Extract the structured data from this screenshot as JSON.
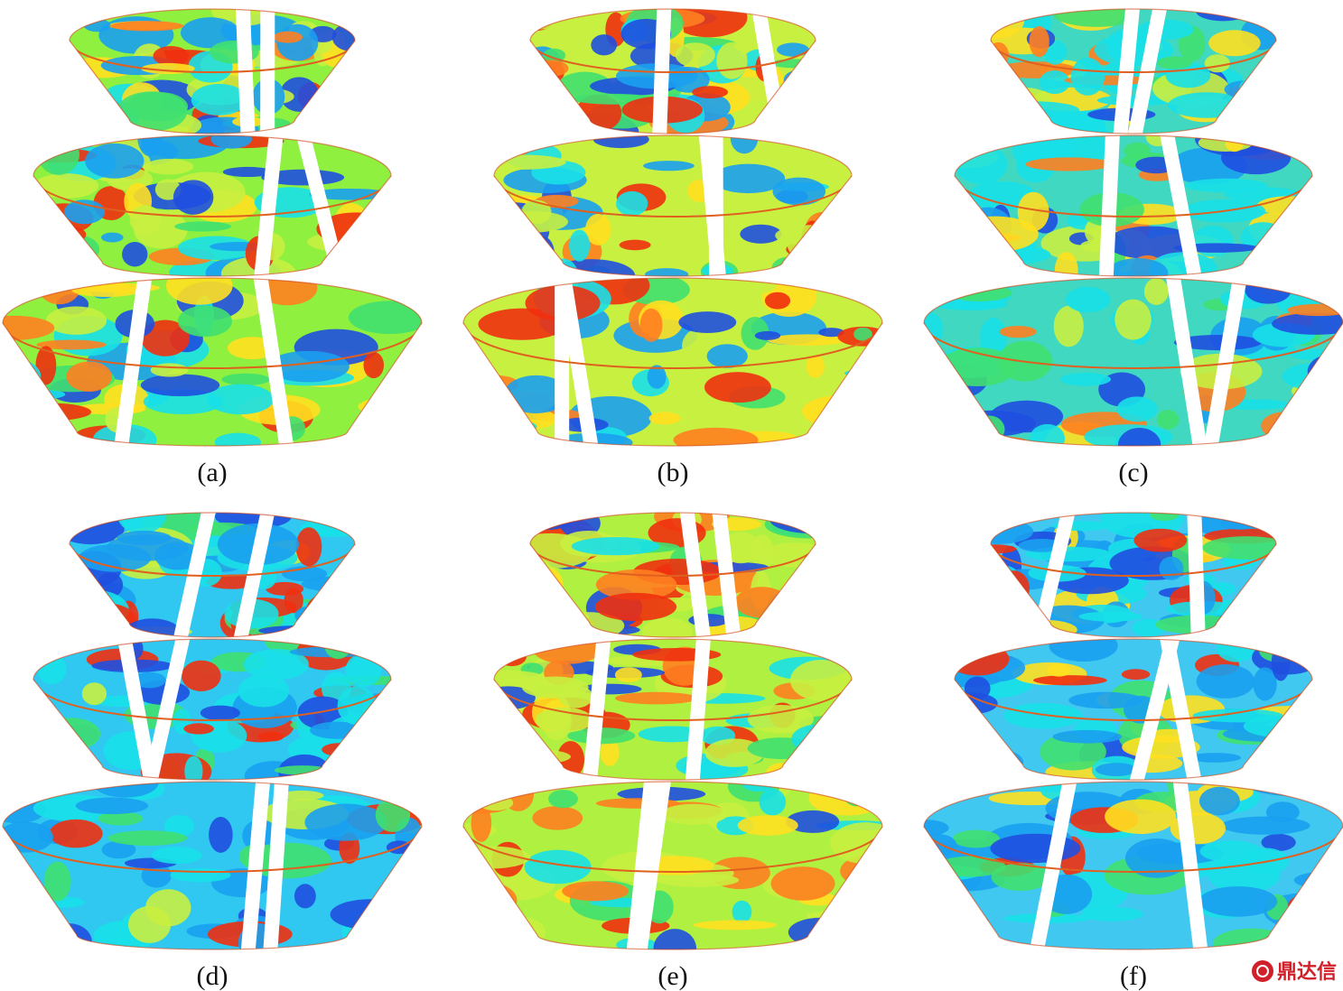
{
  "panels": [
    {
      "label": "(a)"
    },
    {
      "label": "(b)"
    },
    {
      "label": "(c)"
    },
    {
      "label": "(d)"
    },
    {
      "label": "(e)"
    },
    {
      "label": "(f)"
    }
  ],
  "watermark": "鼎达信"
}
